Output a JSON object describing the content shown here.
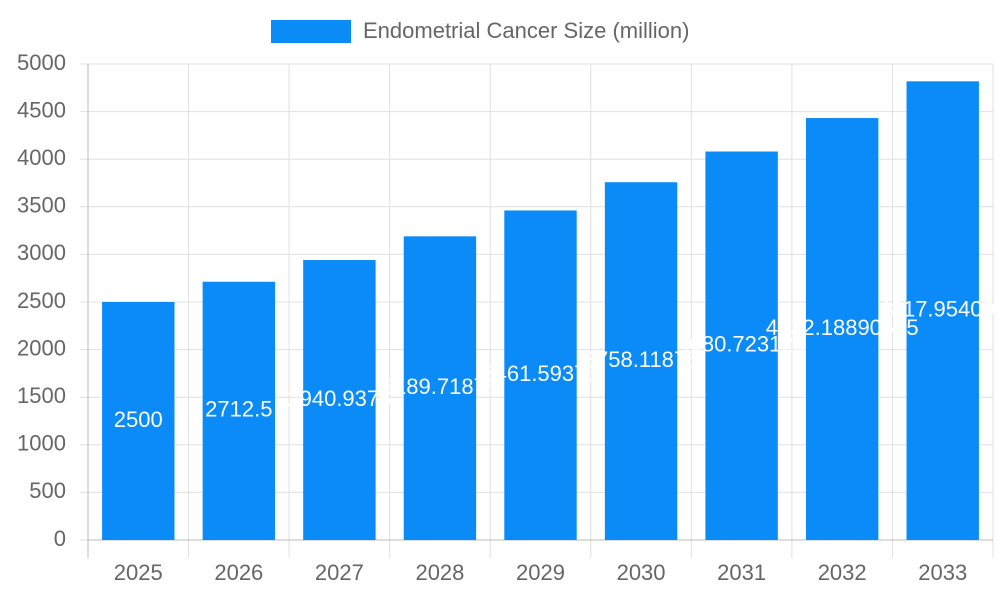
{
  "chart_data": {
    "type": "bar",
    "legend": "Endometrial Cancer Size (million)",
    "categories": [
      "2025",
      "2026",
      "2027",
      "2028",
      "2029",
      "2030",
      "2031",
      "2032",
      "2033"
    ],
    "values": [
      2500,
      2712.5,
      2940.9375,
      3189.71875,
      3461.59375,
      3758.11875,
      4080.723125,
      4432.18890625,
      4817.954006
    ],
    "color": "#0a8bf8",
    "ylim": [
      0,
      5000
    ],
    "yticks": [
      0,
      500,
      1000,
      1500,
      2000,
      2500,
      3000,
      3500,
      4000,
      4500,
      5000
    ],
    "grid": true
  }
}
